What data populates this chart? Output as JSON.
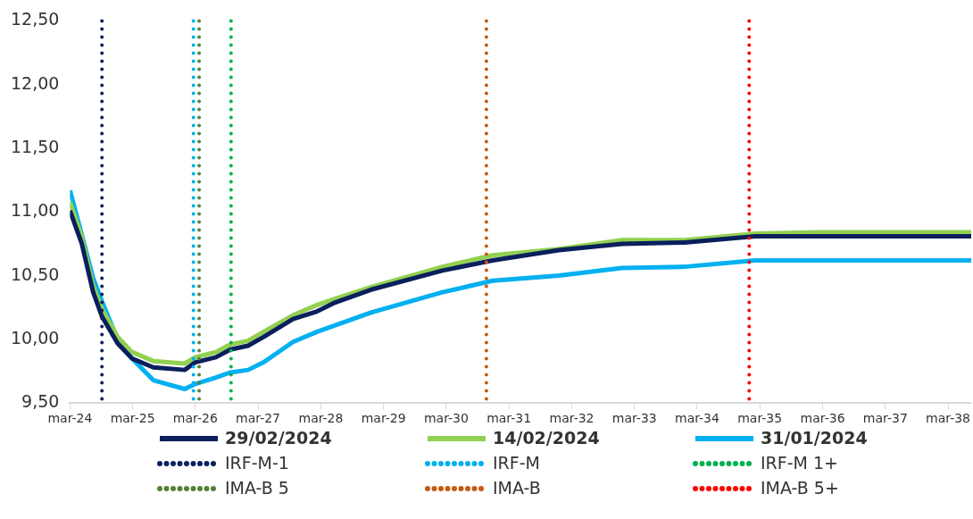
{
  "chart_data": {
    "type": "line",
    "x": [
      "2024-03-01",
      "2024-05-09",
      "2024-07-14",
      "2024-09-03",
      "2024-12-03",
      "2025-02-25",
      "2025-06-29",
      "2025-12-29",
      "2026-03-01",
      "2026-06-29",
      "2026-09-21",
      "2027-01-02",
      "2027-04-03",
      "2027-09-21",
      "2028-02-08",
      "2028-05-24",
      "2028-12-18",
      "2030-02-07",
      "2030-11-26",
      "2031-12-18",
      "2032-12-18",
      "2033-12-18",
      "2035-02-03",
      "2036-02-03",
      "2038-07-14"
    ],
    "series": [
      {
        "name": "29/02/2024",
        "color": "#0a1f5c",
        "values": [
          11.01,
          10.75,
          10.37,
          10.18,
          9.97,
          9.85,
          9.78,
          9.76,
          9.82,
          9.86,
          9.92,
          9.95,
          10.02,
          10.16,
          10.22,
          10.29,
          10.39,
          10.54,
          10.62,
          10.7,
          10.75,
          10.76,
          10.81,
          10.81,
          10.81
        ]
      },
      {
        "name": "14/02/2024",
        "color": "#92d050",
        "values": [
          11.08,
          10.8,
          10.42,
          10.24,
          10.02,
          9.9,
          9.83,
          9.81,
          9.86,
          9.9,
          9.96,
          9.99,
          10.06,
          10.19,
          10.27,
          10.32,
          10.41,
          10.57,
          10.66,
          10.71,
          10.78,
          10.78,
          10.83,
          10.84,
          10.84
        ]
      },
      {
        "name": "31/01/2024",
        "color": "#00b0f0",
        "values": [
          11.17,
          10.82,
          10.48,
          10.3,
          10.0,
          9.85,
          9.68,
          9.61,
          9.65,
          9.7,
          9.74,
          9.76,
          9.82,
          9.98,
          10.06,
          10.11,
          10.21,
          10.37,
          10.46,
          10.5,
          10.56,
          10.57,
          10.62,
          10.62,
          10.62
        ]
      }
    ],
    "xlim": [
      "2024-03-01",
      "2038-07-14"
    ],
    "xticks": [
      {
        "value": "2024-03",
        "label": "mar-24"
      },
      {
        "value": "2025-03",
        "label": "mar-25"
      },
      {
        "value": "2026-03",
        "label": "mar-26"
      },
      {
        "value": "2027-03",
        "label": "mar-27"
      },
      {
        "value": "2028-03",
        "label": "mar-28"
      },
      {
        "value": "2029-03",
        "label": "mar-29"
      },
      {
        "value": "2030-03",
        "label": "mar-30"
      },
      {
        "value": "2031-03",
        "label": "mar-31"
      },
      {
        "value": "2032-03",
        "label": "mar-32"
      },
      {
        "value": "2033-03",
        "label": "mar-33"
      },
      {
        "value": "2034-03",
        "label": "mar-34"
      },
      {
        "value": "2035-03",
        "label": "mar-35"
      },
      {
        "value": "2036-03",
        "label": "mar-36"
      },
      {
        "value": "2037-03",
        "label": "mar-37"
      },
      {
        "value": "2038-03",
        "label": "mar-38"
      }
    ],
    "ylim": [
      9.5,
      12.5
    ],
    "yticks": [
      {
        "value": 9.5,
        "label": "9,50"
      },
      {
        "value": 10,
        "label": "10,00"
      },
      {
        "value": 10.5,
        "label": "10,50"
      },
      {
        "value": 11,
        "label": "11,00"
      },
      {
        "value": 11.5,
        "label": "11,50"
      },
      {
        "value": 12,
        "label": "12,00"
      },
      {
        "value": 12.5,
        "label": "12,50"
      }
    ],
    "ref_lines": [
      {
        "axis": "x",
        "value": "2024-09-03",
        "label": "IRF-M-1",
        "color": "#0a2160",
        "line_style": "dotted"
      },
      {
        "axis": "x",
        "value": "2026-02-18",
        "label": "IRF-M",
        "color": "#00b0f0",
        "line_style": "dotted"
      },
      {
        "axis": "x",
        "value": "2026-09-25",
        "label": "IRF-M 1+",
        "color": "#00b050",
        "line_style": "dotted"
      },
      {
        "axis": "x",
        "value": "2026-03-23",
        "label": "IMA-B 5",
        "color": "#548235",
        "line_style": "dotted"
      },
      {
        "axis": "x",
        "value": "2030-10-21",
        "label": "IMA-B",
        "color": "#c55a11",
        "line_style": "dotted"
      },
      {
        "axis": "x",
        "value": "2034-12-29",
        "label": "IMA-B 5+",
        "color": "#ff0000",
        "line_style": "dotted"
      }
    ],
    "grid": false,
    "legend": "bottom",
    "marker": "none",
    "line_style": "solid"
  }
}
